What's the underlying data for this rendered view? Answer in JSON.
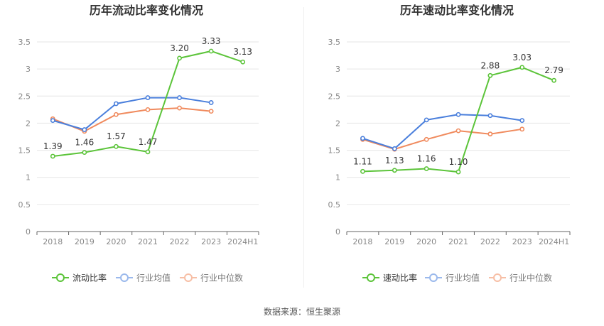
{
  "chart_data": [
    {
      "type": "line",
      "title": "历年流动比率变化情况",
      "categories": [
        "2018",
        "2019",
        "2020",
        "2021",
        "2022",
        "2023",
        "2024H1"
      ],
      "yticks": [
        "0",
        "0.5",
        "1",
        "1.5",
        "2",
        "2.5",
        "3",
        "3.5"
      ],
      "ylim": [
        0,
        3.5
      ],
      "grid": true,
      "legend_position": "bottom",
      "series": [
        {
          "name": "流动比率",
          "color": "#5cc43a",
          "values": [
            1.39,
            1.46,
            1.57,
            1.47,
            3.2,
            3.33,
            3.13
          ],
          "labels": [
            "1.39",
            "1.46",
            "1.57",
            "1.47",
            "3.20",
            "3.33",
            "3.13"
          ]
        },
        {
          "name": "行业均值",
          "color": "#4a7fdc",
          "values": [
            2.05,
            1.88,
            2.36,
            2.47,
            2.47,
            2.38,
            null
          ]
        },
        {
          "name": "行业中位数",
          "color": "#f08a5d",
          "values": [
            2.08,
            1.85,
            2.16,
            2.25,
            2.28,
            2.22,
            null
          ]
        }
      ]
    },
    {
      "type": "line",
      "title": "历年速动比率变化情况",
      "categories": [
        "2018",
        "2019",
        "2020",
        "2021",
        "2022",
        "2023",
        "2024H1"
      ],
      "yticks": [
        "0",
        "0.5",
        "1",
        "1.5",
        "2",
        "2.5",
        "3",
        "3.5"
      ],
      "ylim": [
        0,
        3.5
      ],
      "grid": true,
      "legend_position": "bottom",
      "series": [
        {
          "name": "速动比率",
          "color": "#5cc43a",
          "values": [
            1.11,
            1.13,
            1.16,
            1.1,
            2.88,
            3.03,
            2.79
          ],
          "labels": [
            "1.11",
            "1.13",
            "1.16",
            "1.10",
            "2.88",
            "3.03",
            "2.79"
          ]
        },
        {
          "name": "行业均值",
          "color": "#4a7fdc",
          "values": [
            1.72,
            1.53,
            2.06,
            2.16,
            2.14,
            2.05,
            null
          ]
        },
        {
          "name": "行业中位数",
          "color": "#f08a5d",
          "values": [
            1.7,
            1.52,
            1.7,
            1.86,
            1.8,
            1.89,
            null
          ]
        }
      ]
    }
  ],
  "footer": {
    "source": "数据来源：恒生聚源"
  }
}
